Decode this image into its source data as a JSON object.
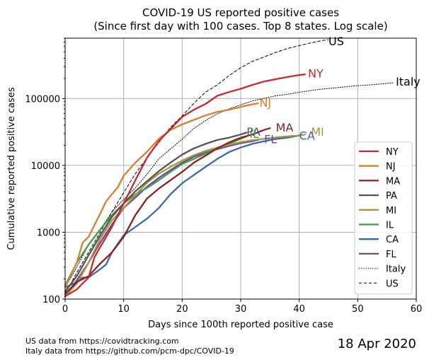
{
  "chart_data": {
    "type": "line",
    "title": [
      "COVID-19 US reported positive cases",
      "(Since first day with 100 cases. Top 8 states. Log scale)"
    ],
    "xlabel": "Days since 100th reported positive case",
    "ylabel": "Cumulative reported positive cases",
    "xlim": [
      0,
      60
    ],
    "ylim": [
      100,
      800000
    ],
    "y_scale": "log",
    "x_ticks": [
      0,
      10,
      20,
      30,
      40,
      50,
      60
    ],
    "y_ticks": [
      100,
      1000,
      10000,
      100000
    ],
    "y_tick_labels": [
      "100",
      "1000",
      "10000",
      "100000"
    ],
    "grid": true,
    "legend_position": "right",
    "series": [
      {
        "name": "NY",
        "color": "#c8282e",
        "style": "solid",
        "x": [
          0,
          2,
          4,
          5,
          6,
          8,
          10,
          12,
          14,
          16,
          18,
          20,
          22,
          24,
          26,
          28,
          30,
          32,
          34,
          36,
          38,
          40,
          41
        ],
        "y": [
          110,
          140,
          210,
          420,
          600,
          1200,
          2700,
          6000,
          13000,
          23000,
          35000,
          53000,
          68000,
          83000,
          110000,
          125000,
          140000,
          160000,
          180000,
          195000,
          210000,
          225000,
          230000
        ],
        "annotation": "NY",
        "annot_x": 41.5,
        "annot_y": 240000
      },
      {
        "name": "NJ",
        "color": "#d87f2f",
        "style": "solid",
        "x": [
          0,
          2,
          3,
          4,
          6,
          7,
          8,
          9,
          10,
          12,
          14,
          16,
          18,
          20,
          22,
          24,
          26,
          28,
          30,
          32,
          33
        ],
        "y": [
          150,
          350,
          700,
          850,
          1900,
          2900,
          3700,
          4700,
          7000,
          11000,
          16000,
          25000,
          34000,
          41000,
          48000,
          56000,
          63000,
          68000,
          75000,
          82000,
          85000
        ],
        "annotation": "NJ",
        "annot_x": 33.2,
        "annot_y": 87000
      },
      {
        "name": "MA",
        "color": "#8b2020",
        "style": "solid",
        "x": [
          0,
          2,
          4,
          6,
          8,
          10,
          12,
          14,
          16,
          18,
          20,
          22,
          24,
          26,
          28,
          30,
          32,
          34,
          35
        ],
        "y": [
          120,
          180,
          220,
          340,
          500,
          850,
          1800,
          3200,
          4500,
          6000,
          8000,
          11000,
          14000,
          18000,
          22000,
          26000,
          29000,
          34000,
          36000
        ],
        "annotation": "MA",
        "annot_x": 36,
        "annot_y": 37000
      },
      {
        "name": "PA",
        "color": "#555555",
        "style": "solid",
        "x": [
          0,
          2,
          4,
          6,
          8,
          10,
          12,
          14,
          16,
          18,
          20,
          22,
          24,
          26,
          28,
          30,
          31
        ],
        "y": [
          130,
          220,
          450,
          900,
          1700,
          2700,
          4100,
          5800,
          8200,
          11000,
          14500,
          18000,
          21000,
          24000,
          26000,
          29000,
          31000
        ],
        "annotation": "PA",
        "annot_x": 31,
        "annot_y": 32000
      },
      {
        "name": "MI",
        "color": "#a89540",
        "style": "solid",
        "x": [
          0,
          2,
          4,
          6,
          8,
          10,
          12,
          14,
          16,
          18,
          20,
          22,
          24,
          26,
          28,
          30,
          32,
          34,
          36,
          38,
          40,
          41
        ],
        "y": [
          110,
          170,
          350,
          800,
          1500,
          2300,
          3600,
          5500,
          7500,
          9500,
          11800,
          14200,
          16500,
          18500,
          20300,
          22300,
          23800,
          25000,
          26200,
          27200,
          28000,
          29000
        ],
        "annotation": "MI",
        "annot_x": 42,
        "annot_y": 32000
      },
      {
        "name": "IL",
        "color": "#3f9d4f",
        "style": "solid",
        "x": [
          0,
          2,
          4,
          6,
          8,
          10,
          12,
          14,
          16,
          18,
          20,
          22,
          24,
          26,
          28,
          30,
          31
        ],
        "y": [
          160,
          350,
          650,
          1100,
          1800,
          2700,
          3700,
          4600,
          6000,
          8000,
          10500,
          12500,
          15000,
          18000,
          21000,
          25000,
          27000
        ],
        "annotation": "IL",
        "annot_x": 31.5,
        "annot_y": 30000
      },
      {
        "name": "CA",
        "color": "#3a67b0",
        "style": "solid",
        "x": [
          0,
          2,
          3,
          4,
          6,
          7,
          8,
          10,
          12,
          14,
          16,
          18,
          20,
          22,
          24,
          26,
          28,
          30,
          32,
          34,
          36,
          38,
          40
        ],
        "y": [
          150,
          180,
          210,
          210,
          280,
          330,
          500,
          900,
          1200,
          1600,
          2300,
          3700,
          5400,
          7200,
          9500,
          12500,
          15800,
          18500,
          21000,
          23000,
          24800,
          26000,
          28000
        ],
        "annotation": "CA",
        "annot_x": 40,
        "annot_y": 28000
      },
      {
        "name": "FL",
        "color": "#6a4c96",
        "style": "solid",
        "x": [
          0,
          2,
          4,
          6,
          8,
          10,
          12,
          14,
          16,
          18,
          20,
          22,
          24,
          26,
          28,
          30,
          32,
          33
        ],
        "y": [
          110,
          190,
          350,
          700,
          1300,
          2300,
          3300,
          4800,
          6500,
          8500,
          11000,
          13500,
          15500,
          17500,
          19500,
          21500,
          23000,
          24000
        ],
        "annotation": "FL",
        "annot_x": 34,
        "annot_y": 25000
      },
      {
        "name": "Italy",
        "color": "#000000",
        "style": "dotted",
        "x": [
          0,
          2,
          4,
          6,
          8,
          10,
          12,
          14,
          16,
          18,
          20,
          22,
          24,
          26,
          28,
          30,
          32,
          34,
          36,
          38,
          40,
          42,
          44,
          46,
          48,
          50,
          52,
          54,
          56
        ],
        "y": [
          150,
          300,
          650,
          1100,
          2000,
          3100,
          4600,
          7400,
          12500,
          17600,
          24700,
          35700,
          47000,
          59000,
          70000,
          80500,
          92000,
          101000,
          110000,
          116000,
          124000,
          132000,
          139000,
          144000,
          150000,
          156000,
          160000,
          165000,
          172000
        ],
        "annotation": "Italy",
        "annot_x": 56.5,
        "annot_y": 180000
      },
      {
        "name": "US",
        "color": "#000000",
        "style": "dashed",
        "x": [
          0,
          2,
          4,
          6,
          8,
          10,
          12,
          14,
          16,
          18,
          20,
          22,
          24,
          26,
          28,
          30,
          32,
          34,
          36,
          38,
          40,
          42,
          44,
          45
        ],
        "y": [
          120,
          250,
          500,
          1000,
          2000,
          3900,
          7500,
          13000,
          22000,
          37000,
          55000,
          85000,
          125000,
          160000,
          220000,
          290000,
          360000,
          420000,
          490000,
          560000,
          620000,
          680000,
          740000,
          760000
        ],
        "annotation": "US",
        "annot_x": 45,
        "annot_y": 730000
      }
    ]
  },
  "footer": {
    "source_us": "US data from https://covidtracking.com",
    "source_italy": "Italy data from https://github.com/pcm-dpc/COVID-19",
    "date": "18 Apr 2020"
  }
}
